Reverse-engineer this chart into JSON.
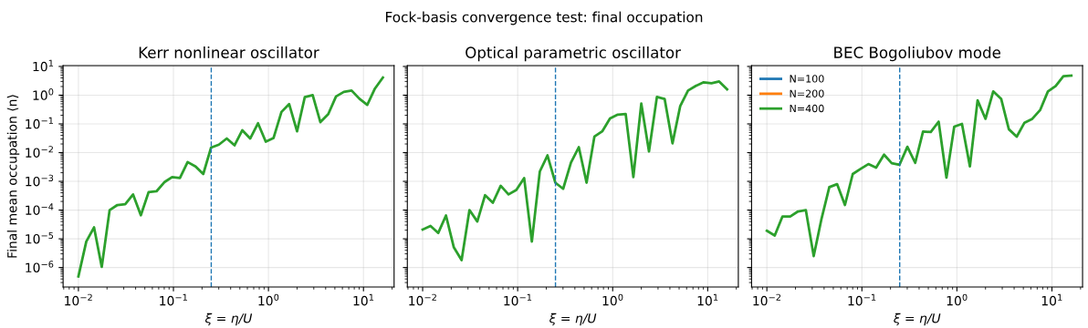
{
  "chart_data": [
    {
      "type": "line",
      "title": "Kerr nonlinear oscillator",
      "xlabel": "ξ = η/U",
      "ylabel": "Final mean occupation ⟨n⟩",
      "annotations": [
        "Fock-basis convergence test: final occupation"
      ],
      "log": "xy",
      "grid": true,
      "legend": false,
      "marker": "none",
      "line_style": "solid",
      "x": [
        0.01,
        0.0121,
        0.0146,
        0.0176,
        0.0213,
        0.0257,
        0.0311,
        0.0376,
        0.0454,
        0.0548,
        0.0663,
        0.0801,
        0.0968,
        0.117,
        0.141,
        0.171,
        0.206,
        0.249,
        0.301,
        0.364,
        0.44,
        0.531,
        0.642,
        0.776,
        0.937,
        1.13,
        1.37,
        1.65,
        2.0,
        2.41,
        2.92,
        3.52,
        4.26,
        5.14,
        6.21,
        7.5,
        9.07,
        10.96,
        13.2,
        16.0
      ],
      "xlim": [
        0.0069,
        21
      ],
      "xticks": [
        {
          "value": 0.01,
          "label": "10$^{−2}$"
        },
        {
          "value": 0.1,
          "label": "10$^{−1}$"
        },
        {
          "value": 1,
          "label": "10$^{0}$"
        },
        {
          "value": 10,
          "label": "10$^{1}$"
        }
      ],
      "ylim": [
        2.1e-07,
        10.7
      ],
      "yticks": [
        {
          "value": 1e-06,
          "label": "10$^{−6}$"
        },
        {
          "value": 1e-05,
          "label": "10$^{−5}$"
        },
        {
          "value": 0.0001,
          "label": "10$^{−4}$"
        },
        {
          "value": 0.001,
          "label": "10$^{−3}$"
        },
        {
          "value": 0.01,
          "label": "10$^{−2}$"
        },
        {
          "value": 0.1,
          "label": "10$^{−1}$"
        },
        {
          "value": 1,
          "label": "10$^{0}$"
        },
        {
          "value": 10,
          "label": "10$^{1}$"
        }
      ],
      "ref_lines": [
        {
          "axis": "x",
          "value": 0.25,
          "color": "#1f77b4",
          "line_style": "dashed"
        }
      ],
      "series": [
        {
          "color": "#2ca02c",
          "values": [
            4.9e-07,
            8e-06,
            2.5e-05,
            1.05e-06,
            0.0001,
            0.00015,
            0.00016,
            0.00035,
            6.6e-05,
            0.00042,
            0.00045,
            0.00093,
            0.0014,
            0.0013,
            0.0047,
            0.0033,
            0.0018,
            0.015,
            0.019,
            0.031,
            0.018,
            0.06,
            0.031,
            0.105,
            0.024,
            0.032,
            0.26,
            0.49,
            0.055,
            0.85,
            1.0,
            0.115,
            0.22,
            0.9,
            1.3,
            1.45,
            0.75,
            0.46,
            1.7,
            4.1
          ]
        }
      ]
    },
    {
      "type": "line",
      "title": "Optical parametric oscillator",
      "xlabel": "ξ = η/U",
      "log": "xy",
      "grid": true,
      "legend": false,
      "marker": "none",
      "line_style": "solid",
      "tick_labels": "x",
      "x": [
        0.01,
        0.0121,
        0.0146,
        0.0176,
        0.0213,
        0.0257,
        0.0311,
        0.0376,
        0.0454,
        0.0548,
        0.0663,
        0.0801,
        0.0968,
        0.117,
        0.141,
        0.171,
        0.206,
        0.249,
        0.301,
        0.364,
        0.44,
        0.531,
        0.642,
        0.776,
        0.937,
        1.13,
        1.37,
        1.65,
        2.0,
        2.41,
        2.92,
        3.52,
        4.26,
        5.14,
        6.21,
        7.5,
        9.07,
        10.96,
        13.2,
        16.0
      ],
      "xlim": [
        0.0069,
        21
      ],
      "xticks": [
        {
          "value": 0.01,
          "label": "10$^{−2}$"
        },
        {
          "value": 0.1,
          "label": "10$^{−1}$"
        },
        {
          "value": 1,
          "label": "10$^{0}$"
        },
        {
          "value": 10,
          "label": "10$^{1}$"
        }
      ],
      "ylim": [
        2.1e-07,
        10.7
      ],
      "ref_lines": [
        {
          "axis": "x",
          "value": 0.25,
          "color": "#1f77b4",
          "line_style": "dashed"
        }
      ],
      "yticks": [
        {
          "value": 1e-06,
          "label": null
        },
        {
          "value": 1e-05,
          "label": null
        },
        {
          "value": 0.0001,
          "label": null
        },
        {
          "value": 0.001,
          "label": null
        },
        {
          "value": 0.01,
          "label": null
        },
        {
          "value": 0.1,
          "label": null
        },
        {
          "value": 1,
          "label": null
        },
        {
          "value": 10,
          "label": null
        }
      ],
      "series": [
        {
          "color": "#2ca02c",
          "values": [
            2.1e-05,
            2.8e-05,
            1.6e-05,
            6.5e-05,
            5e-06,
            1.8e-06,
            0.0001,
            4e-05,
            0.00033,
            0.00018,
            0.0007,
            0.00035,
            0.0005,
            0.0013,
            8e-06,
            0.0022,
            0.008,
            0.0009,
            0.00055,
            0.0045,
            0.0155,
            0.0009,
            0.036,
            0.055,
            0.155,
            0.21,
            0.22,
            0.0014,
            0.51,
            0.011,
            0.87,
            0.74,
            0.021,
            0.42,
            1.45,
            2.1,
            2.8,
            2.6,
            3.0,
            1.6
          ]
        }
      ]
    },
    {
      "type": "line",
      "title": "BEC Bogoliubov mode",
      "xlabel": "ξ = η/U",
      "log": "xy",
      "grid": true,
      "legend": "top left",
      "marker": "none",
      "line_style": "solid",
      "tick_labels": "x",
      "x": [
        0.01,
        0.0121,
        0.0146,
        0.0176,
        0.0213,
        0.0257,
        0.0311,
        0.0376,
        0.0454,
        0.0548,
        0.0663,
        0.0801,
        0.0968,
        0.117,
        0.141,
        0.171,
        0.206,
        0.249,
        0.301,
        0.364,
        0.44,
        0.531,
        0.642,
        0.776,
        0.937,
        1.13,
        1.37,
        1.65,
        2.0,
        2.41,
        2.92,
        3.52,
        4.26,
        5.14,
        6.21,
        7.5,
        9.07,
        10.96,
        13.2,
        16.0
      ],
      "xlim": [
        0.0069,
        21
      ],
      "xticks": [
        {
          "value": 0.01,
          "label": "10$^{−2}$"
        },
        {
          "value": 0.1,
          "label": "10$^{−1}$"
        },
        {
          "value": 1,
          "label": "10$^{0}$"
        },
        {
          "value": 10,
          "label": "10$^{1}$"
        }
      ],
      "ylim": [
        2.1e-07,
        10.7
      ],
      "yticks": [
        {
          "value": 1e-06,
          "label": null
        },
        {
          "value": 1e-05,
          "label": null
        },
        {
          "value": 0.0001,
          "label": null
        },
        {
          "value": 0.001,
          "label": null
        },
        {
          "value": 0.01,
          "label": null
        },
        {
          "value": 0.1,
          "label": null
        },
        {
          "value": 1,
          "label": null
        },
        {
          "value": 10,
          "label": null
        }
      ],
      "ref_lines": [
        {
          "axis": "x",
          "value": 0.25,
          "color": "#1f77b4",
          "line_style": "dashed"
        }
      ],
      "series": [
        {
          "name": "N=100",
          "color": "#1f77b4",
          "values": [
            null,
            null,
            null,
            null,
            null,
            null,
            null,
            null,
            null,
            null,
            null,
            null,
            null,
            null,
            null,
            null,
            null,
            null,
            null,
            null,
            null,
            null,
            null,
            null,
            null,
            null,
            null,
            null,
            null,
            null,
            null,
            null,
            null,
            null,
            null,
            null,
            null,
            null,
            null,
            null
          ]
        },
        {
          "name": "N=200",
          "color": "#ff7f0e",
          "values": [
            null,
            null,
            null,
            null,
            null,
            null,
            null,
            null,
            null,
            null,
            null,
            null,
            null,
            null,
            null,
            null,
            null,
            null,
            null,
            null,
            null,
            null,
            null,
            null,
            null,
            null,
            null,
            null,
            null,
            null,
            null,
            null,
            null,
            null,
            null,
            null,
            null,
            null,
            null,
            null
          ]
        },
        {
          "name": "N=400",
          "color": "#2ca02c",
          "values": [
            1.9e-05,
            1.3e-05,
            6e-05,
            6e-05,
            9e-05,
            0.0001,
            2.5e-06,
            5e-05,
            0.00063,
            0.0008,
            0.00015,
            0.0018,
            0.0027,
            0.004,
            0.003,
            0.0085,
            0.0043,
            0.0038,
            0.016,
            0.0044,
            0.054,
            0.052,
            0.12,
            0.00135,
            0.08,
            0.1,
            0.0033,
            0.66,
            0.15,
            1.35,
            0.75,
            0.065,
            0.036,
            0.11,
            0.15,
            0.3,
            1.35,
            2.1,
            4.6,
            4.8
          ]
        }
      ]
    }
  ]
}
